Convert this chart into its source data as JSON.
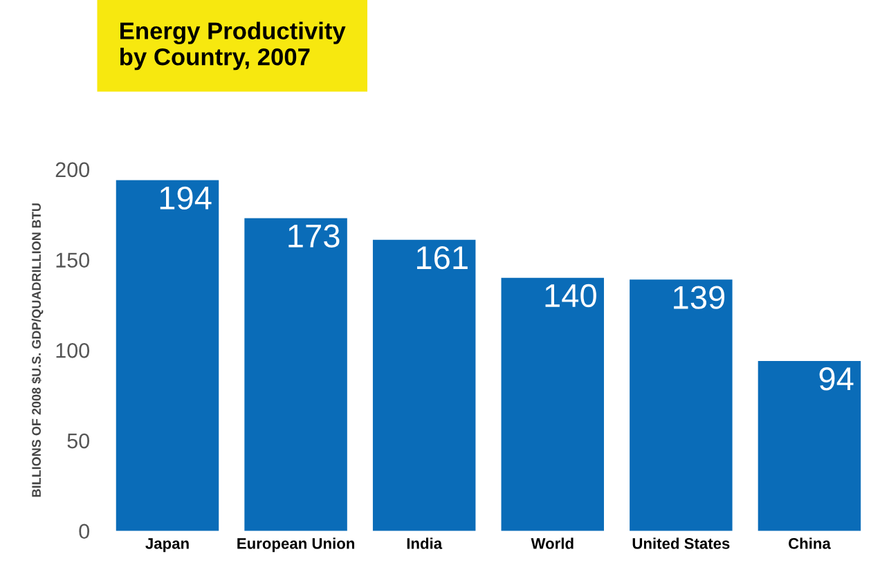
{
  "chart_data": {
    "type": "bar",
    "title": "Energy Productivity\nby Country, 2007",
    "ylabel": "BILLIONS OF 2008 $U.S. GDP/QUADRILLION BTU",
    "categories": [
      "Japan",
      "European Union",
      "India",
      "World",
      "United States",
      "China"
    ],
    "values": [
      194,
      173,
      161,
      140,
      139,
      94
    ],
    "color": "#0a6cb8",
    "ylim": [
      0,
      200
    ],
    "yticks": [
      0,
      50,
      100,
      150,
      200
    ],
    "grid": false,
    "data_labels": true
  }
}
